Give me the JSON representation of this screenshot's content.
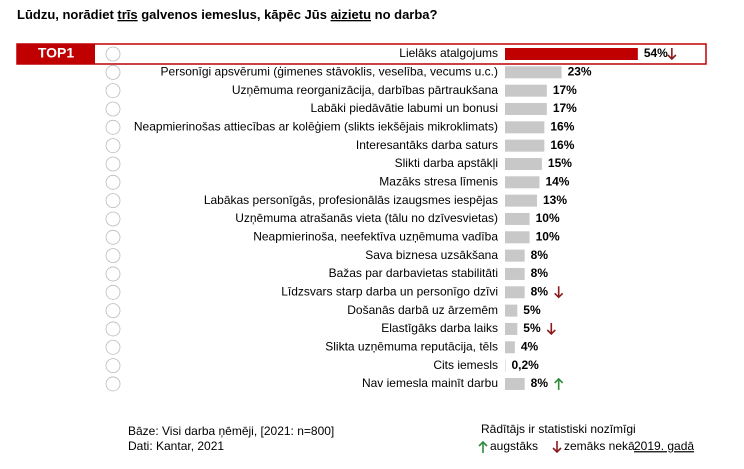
{
  "chart_data": {
    "type": "bar",
    "title_parts": [
      "Lūdzu, norādiet ",
      "trīs",
      " galvenos iemeslus, kāpēc Jūs ",
      "aizietu",
      " no darba?"
    ],
    "highlight_label": "TOP1",
    "categories": [
      "Lielāks atalgojums",
      "Personīgi apsvērumi (ģimenes stāvoklis, veselība, vecums u.c.)",
      "Uzņēmuma reorganizācija, darbības pārtraukšana",
      "Labāki piedāvātie labumi un bonusi",
      "Neapmierinošas attiecības ar kolēģiem (slikts iekšējais mikroklimats)",
      "Interesantāks darba saturs",
      "Slikti darba apstākļi",
      "Mazāks stresa līmenis",
      "Labākas personīgās, profesionālās izaugsmes iespējas",
      "Uzņēmuma atrašanās vieta (tālu no dzīvesvietas)",
      "Neapmierinoša, neefektīva uzņēmuma vadība",
      "Sava biznesa uzsākšana",
      "Bažas par darbavietas stabilitāti",
      "Līdzsvars starp darba un personīgo dzīvi",
      "Došanās darbā uz ārzemēm",
      "Elastīgāks darba laiks",
      "Slikta uzņēmuma reputācija, tēls",
      "Cits iemesls",
      "Nav iemesla mainīt darbu"
    ],
    "values": [
      54,
      23,
      17,
      17,
      16,
      16,
      15,
      14,
      13,
      10,
      10,
      8,
      8,
      8,
      5,
      5,
      4,
      0.2,
      8
    ],
    "value_labels": [
      "54%",
      "23%",
      "17%",
      "17%",
      "16%",
      "16%",
      "15%",
      "14%",
      "13%",
      "10%",
      "10%",
      "8%",
      "8%",
      "8%",
      "5%",
      "5%",
      "4%",
      "0,2%",
      "8%"
    ],
    "trend": [
      "down",
      null,
      null,
      null,
      null,
      null,
      null,
      null,
      null,
      null,
      null,
      null,
      null,
      "down",
      null,
      "down",
      null,
      null,
      "up"
    ],
    "highlight_color": "#c00000",
    "color": "#c8c8c8",
    "up_color": "#2e8b3a",
    "down_color": "#8b1a1a",
    "footnotes": [
      "Bāze: Visi darba ņēmēji, [2021: n=800]",
      "Dati: Kantar, 2021"
    ],
    "legend": {
      "title": "Rādītājs ir statistiski nozīmīgi",
      "up": "augstāks",
      "down": "zemāks nekā",
      "reference": "2019. gadā"
    }
  }
}
